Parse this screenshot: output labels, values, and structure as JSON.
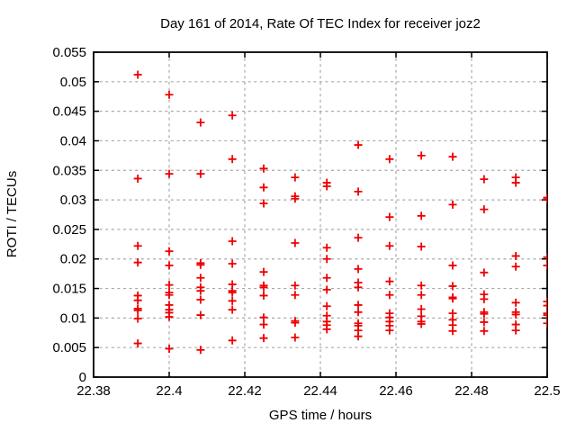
{
  "chart_data": {
    "type": "scatter",
    "title": "Day 161 of 2014, Rate Of TEC Index for receiver joz2",
    "xlabel": "GPS time / hours",
    "ylabel": "ROTI / TECUs",
    "xlim": [
      22.38,
      22.5
    ],
    "ylim": [
      0,
      0.055
    ],
    "xticks": [
      22.38,
      22.4,
      22.42,
      22.44,
      22.46,
      22.48,
      22.5
    ],
    "xtick_labels": [
      "22.38",
      "22.4",
      "22.42",
      "22.44",
      "22.46",
      "22.48",
      "22.5"
    ],
    "yticks": [
      0,
      0.005,
      0.01,
      0.015,
      0.02,
      0.025,
      0.03,
      0.035,
      0.04,
      0.045,
      0.05,
      0.055
    ],
    "ytick_labels": [
      "0",
      "0.005",
      "0.01",
      "0.015",
      "0.02",
      "0.025",
      "0.03",
      "0.035",
      "0.04",
      "0.045",
      "0.05",
      "0.055"
    ],
    "grid": true,
    "legend": false,
    "marker": "plus",
    "colors": {
      "marker": "#ee0000",
      "grid": "#a8a8a8",
      "border": "#000000",
      "background": "#ffffff",
      "text": "#000000"
    },
    "series": [
      {
        "name": "ROTI",
        "points": [
          [
            22.3917,
            0.0512
          ],
          [
            22.3917,
            0.0336
          ],
          [
            22.3917,
            0.0222
          ],
          [
            22.3917,
            0.0194
          ],
          [
            22.3917,
            0.0138
          ],
          [
            22.3917,
            0.013
          ],
          [
            22.3917,
            0.0116
          ],
          [
            22.3917,
            0.0113
          ],
          [
            22.3917,
            0.0099
          ],
          [
            22.3917,
            0.0057
          ],
          [
            22.4,
            0.0478
          ],
          [
            22.4,
            0.0344
          ],
          [
            22.4,
            0.0213
          ],
          [
            22.4,
            0.0189
          ],
          [
            22.4,
            0.0156
          ],
          [
            22.4,
            0.0143
          ],
          [
            22.4,
            0.0139
          ],
          [
            22.4,
            0.0122
          ],
          [
            22.4,
            0.0114
          ],
          [
            22.4,
            0.0109
          ],
          [
            22.4,
            0.0102
          ],
          [
            22.4,
            0.0048
          ],
          [
            22.4083,
            0.0431
          ],
          [
            22.4083,
            0.0344
          ],
          [
            22.4083,
            0.0193
          ],
          [
            22.4083,
            0.019
          ],
          [
            22.4083,
            0.0168
          ],
          [
            22.4083,
            0.0152
          ],
          [
            22.4083,
            0.0146
          ],
          [
            22.4083,
            0.0131
          ],
          [
            22.4083,
            0.0105
          ],
          [
            22.4083,
            0.0046
          ],
          [
            22.4167,
            0.0443
          ],
          [
            22.4167,
            0.0369
          ],
          [
            22.4167,
            0.023
          ],
          [
            22.4167,
            0.0192
          ],
          [
            22.4167,
            0.0157
          ],
          [
            22.4167,
            0.0146
          ],
          [
            22.4167,
            0.0143
          ],
          [
            22.4167,
            0.0129
          ],
          [
            22.4167,
            0.0114
          ],
          [
            22.4167,
            0.0062
          ],
          [
            22.425,
            0.0353
          ],
          [
            22.425,
            0.0321
          ],
          [
            22.425,
            0.0294
          ],
          [
            22.425,
            0.0178
          ],
          [
            22.425,
            0.0155
          ],
          [
            22.425,
            0.0152
          ],
          [
            22.425,
            0.0138
          ],
          [
            22.425,
            0.0101
          ],
          [
            22.425,
            0.0089
          ],
          [
            22.425,
            0.0066
          ],
          [
            22.4333,
            0.0338
          ],
          [
            22.4333,
            0.0306
          ],
          [
            22.4333,
            0.0302
          ],
          [
            22.4333,
            0.0227
          ],
          [
            22.4333,
            0.0155
          ],
          [
            22.4333,
            0.0139
          ],
          [
            22.4333,
            0.0095
          ],
          [
            22.4333,
            0.0092
          ],
          [
            22.4333,
            0.0067
          ],
          [
            22.4417,
            0.0329
          ],
          [
            22.4417,
            0.0323
          ],
          [
            22.4417,
            0.0219
          ],
          [
            22.4417,
            0.02
          ],
          [
            22.4417,
            0.0168
          ],
          [
            22.4417,
            0.0148
          ],
          [
            22.4417,
            0.012
          ],
          [
            22.4417,
            0.0104
          ],
          [
            22.4417,
            0.0094
          ],
          [
            22.4417,
            0.0088
          ],
          [
            22.4417,
            0.0081
          ],
          [
            22.45,
            0.0393
          ],
          [
            22.45,
            0.0314
          ],
          [
            22.45,
            0.0236
          ],
          [
            22.45,
            0.0183
          ],
          [
            22.45,
            0.016
          ],
          [
            22.45,
            0.0152
          ],
          [
            22.45,
            0.0122
          ],
          [
            22.45,
            0.011
          ],
          [
            22.45,
            0.0091
          ],
          [
            22.45,
            0.0087
          ],
          [
            22.45,
            0.0079
          ],
          [
            22.45,
            0.0069
          ],
          [
            22.4583,
            0.0369
          ],
          [
            22.4583,
            0.0271
          ],
          [
            22.4583,
            0.0222
          ],
          [
            22.4583,
            0.0162
          ],
          [
            22.4583,
            0.0139
          ],
          [
            22.4583,
            0.0108
          ],
          [
            22.4583,
            0.0101
          ],
          [
            22.4583,
            0.0094
          ],
          [
            22.4583,
            0.0087
          ],
          [
            22.4583,
            0.0079
          ],
          [
            22.4667,
            0.0375
          ],
          [
            22.4667,
            0.0273
          ],
          [
            22.4667,
            0.0221
          ],
          [
            22.4667,
            0.0155
          ],
          [
            22.4667,
            0.0139
          ],
          [
            22.4667,
            0.0115
          ],
          [
            22.4667,
            0.0103
          ],
          [
            22.4667,
            0.0094
          ],
          [
            22.4667,
            0.009
          ],
          [
            22.475,
            0.0373
          ],
          [
            22.475,
            0.0292
          ],
          [
            22.475,
            0.0189
          ],
          [
            22.475,
            0.0154
          ],
          [
            22.475,
            0.0135
          ],
          [
            22.475,
            0.0133
          ],
          [
            22.475,
            0.0108
          ],
          [
            22.475,
            0.0097
          ],
          [
            22.475,
            0.0088
          ],
          [
            22.475,
            0.0078
          ],
          [
            22.4833,
            0.0335
          ],
          [
            22.4833,
            0.0284
          ],
          [
            22.4833,
            0.0177
          ],
          [
            22.4833,
            0.014
          ],
          [
            22.4833,
            0.0132
          ],
          [
            22.4833,
            0.011
          ],
          [
            22.4833,
            0.0107
          ],
          [
            22.4833,
            0.0093
          ],
          [
            22.4833,
            0.0078
          ],
          [
            22.4917,
            0.0338
          ],
          [
            22.4917,
            0.0329
          ],
          [
            22.4917,
            0.0205
          ],
          [
            22.4917,
            0.0187
          ],
          [
            22.4917,
            0.0126
          ],
          [
            22.4917,
            0.011
          ],
          [
            22.4917,
            0.0106
          ],
          [
            22.4917,
            0.0089
          ],
          [
            22.4917,
            0.0079
          ],
          [
            22.5,
            0.0304
          ],
          [
            22.5,
            0.0301
          ],
          [
            22.5,
            0.0203
          ],
          [
            22.5,
            0.0189
          ],
          [
            22.5,
            0.0128
          ],
          [
            22.5,
            0.0121
          ],
          [
            22.5,
            0.0108
          ],
          [
            22.5,
            0.0105
          ],
          [
            22.5,
            0.0091
          ]
        ]
      }
    ]
  }
}
